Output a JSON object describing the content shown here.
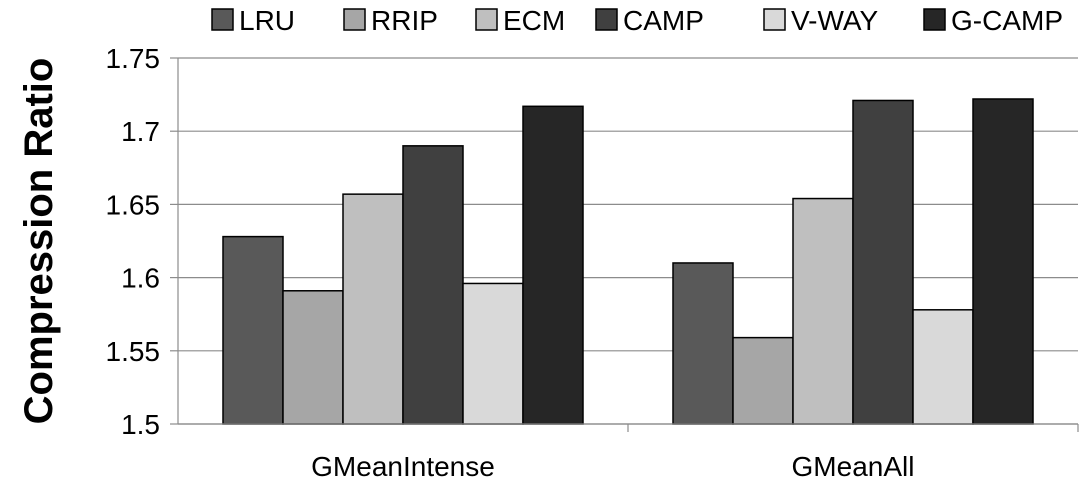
{
  "chart_data": {
    "type": "bar",
    "title": "",
    "xlabel": "",
    "ylabel": "Compression Ratio",
    "ylim": [
      1.5,
      1.75
    ],
    "yticks": [
      "1.5",
      "1.55",
      "1.6",
      "1.65",
      "1.7",
      "1.75"
    ],
    "grid": true,
    "legend_position": "top",
    "categories": [
      "GMeanIntense",
      "GMeanAll"
    ],
    "series": [
      {
        "name": "LRU",
        "color": "#595959",
        "values": [
          1.628,
          1.61
        ]
      },
      {
        "name": "RRIP",
        "color": "#a6a6a6",
        "values": [
          1.591,
          1.559
        ]
      },
      {
        "name": "ECM",
        "color": "#bfbfbf",
        "values": [
          1.657,
          1.654
        ]
      },
      {
        "name": "CAMP",
        "color": "#404040",
        "values": [
          1.69,
          1.721
        ]
      },
      {
        "name": "V-WAY",
        "color": "#d9d9d9",
        "values": [
          1.596,
          1.578
        ]
      },
      {
        "name": "G-CAMP",
        "color": "#262626",
        "values": [
          1.717,
          1.722
        ]
      }
    ]
  }
}
